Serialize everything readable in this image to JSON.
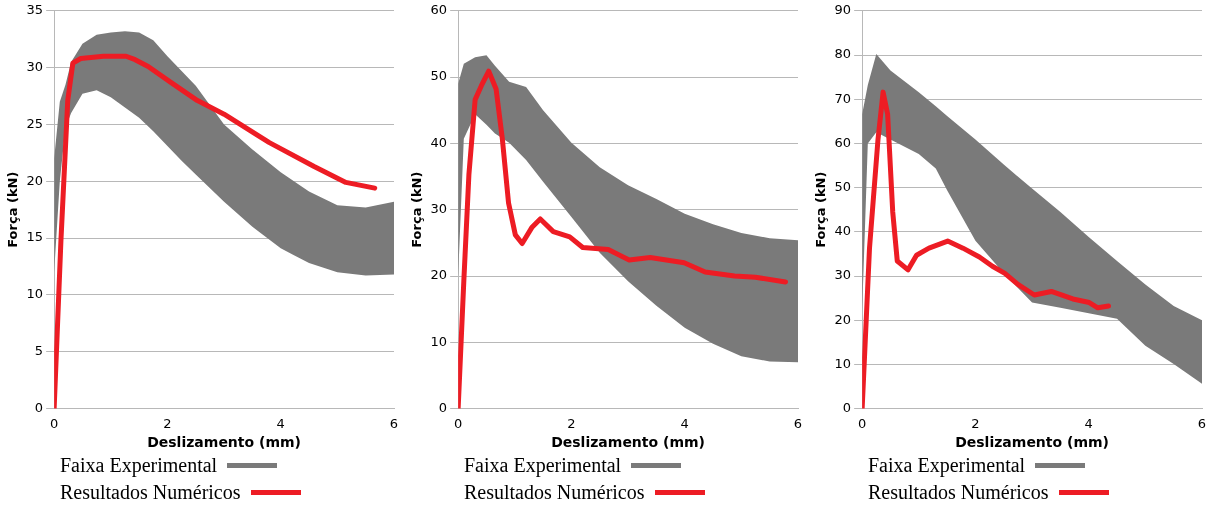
{
  "chart_data": [
    {
      "type": "line",
      "xlabel": "Deslizamento (mm)",
      "ylabel": "Força (kN)",
      "xlim": [
        0,
        6
      ],
      "xticks": [
        0,
        2,
        4,
        6
      ],
      "ylim": [
        0,
        35
      ],
      "yticks": [
        0,
        5,
        10,
        15,
        20,
        25,
        30,
        35
      ],
      "grid": "y",
      "legend": "bottom",
      "marker": "none",
      "line_style": "solid",
      "series": [
        {
          "name": "Faixa Experimental",
          "color": "#7a7a7a",
          "x": [
            0,
            0.1,
            0.2,
            0.3,
            0.5,
            0.75,
            1,
            1.25,
            1.5,
            1.75,
            2,
            2.25,
            2.5,
            3,
            3.5,
            4,
            4.5,
            5,
            5.5,
            6
          ],
          "values": [
            null,
            null,
            null,
            null,
            null,
            null,
            null,
            null,
            null,
            null,
            null,
            null,
            null,
            null,
            null,
            null,
            null,
            null,
            null,
            null
          ],
          "upper": [
            22,
            27,
            28.5,
            30.5,
            32.1,
            32.9,
            33.1,
            33.2,
            33.1,
            32.4,
            31,
            29.7,
            28.4,
            25,
            22.8,
            20.8,
            19.1,
            17.9,
            17.7,
            18.2
          ],
          "lower": [
            12,
            20,
            24.7,
            26,
            27.7,
            28,
            27.4,
            26.5,
            25.6,
            24.4,
            23.1,
            21.8,
            20.6,
            18.2,
            16,
            14.1,
            12.8,
            12,
            11.7,
            11.8
          ]
        },
        {
          "name": "Resultados Numéricos",
          "color": "#ed1c24",
          "x": [
            0,
            0.12,
            0.24,
            0.33,
            0.47,
            0.87,
            1.27,
            1.43,
            1.66,
            2.06,
            2.53,
            3,
            3.8,
            4.59,
            5.15,
            5.66
          ],
          "values": [
            0,
            14.8,
            27.1,
            30.4,
            30.8,
            31,
            31,
            30.7,
            30.1,
            28.7,
            27.1,
            25.9,
            23.4,
            21.3,
            19.9,
            19.4
          ]
        }
      ]
    },
    {
      "type": "line",
      "xlabel": "Deslizamento (mm)",
      "ylabel": "Força (kN)",
      "xlim": [
        0,
        6
      ],
      "xticks": [
        0,
        2,
        4,
        6
      ],
      "ylim": [
        0,
        60
      ],
      "yticks": [
        0,
        10,
        20,
        30,
        40,
        50,
        60
      ],
      "grid": "y",
      "legend": "bottom",
      "marker": "none",
      "line_style": "solid",
      "series": [
        {
          "name": "Faixa Experimental",
          "color": "#7a7a7a",
          "x": [
            0,
            0.1,
            0.3,
            0.5,
            0.65,
            0.9,
            1.2,
            1.5,
            2,
            2.5,
            3,
            3.5,
            4,
            4.5,
            5,
            5.5,
            6
          ],
          "values": [
            null,
            null,
            null,
            null,
            null,
            null,
            null,
            null,
            null,
            null,
            null,
            null,
            null,
            null,
            null,
            null,
            null
          ],
          "upper": [
            49,
            52,
            53,
            53.3,
            51.7,
            49.3,
            48.5,
            45,
            40.1,
            36.4,
            33.7,
            31.6,
            29.4,
            27.8,
            26.5,
            25.7,
            25.4
          ],
          "lower": [
            20,
            40.7,
            44.4,
            42.8,
            41.5,
            40.1,
            37.5,
            34.2,
            28.9,
            23.5,
            19.2,
            15.5,
            12.2,
            9.8,
            7.9,
            7.1,
            7
          ]
        },
        {
          "name": "Resultados Numéricos",
          "color": "#ed1c24",
          "x": [
            0,
            0.1,
            0.19,
            0.3,
            0.41,
            0.54,
            0.67,
            0.78,
            0.89,
            1.01,
            1.13,
            1.3,
            1.45,
            1.68,
            1.97,
            2.2,
            2.65,
            3.02,
            3.39,
            3.99,
            4.36,
            4.88,
            5.25,
            5.78
          ],
          "values": [
            0,
            19.2,
            35.3,
            46.6,
            48.7,
            50.9,
            48.2,
            40.7,
            31,
            26.2,
            24.9,
            27.3,
            28.6,
            26.7,
            25.9,
            24.3,
            24,
            22.4,
            22.8,
            22,
            20.6,
            20,
            19.8,
            19.1
          ]
        }
      ]
    },
    {
      "type": "line",
      "xlabel": "Deslizamento (mm)",
      "ylabel": "Força (kN)",
      "xlim": [
        0,
        6
      ],
      "xticks": [
        0,
        2,
        4,
        6
      ],
      "ylim": [
        0,
        90
      ],
      "yticks": [
        0,
        10,
        20,
        30,
        40,
        50,
        60,
        70,
        80,
        90
      ],
      "grid": "y",
      "legend": "bottom",
      "marker": "none",
      "line_style": "solid",
      "series": [
        {
          "name": "Faixa Experimental",
          "color": "#7a7a7a",
          "x": [
            0,
            0.1,
            0.25,
            0.5,
            1,
            1.3,
            1.5,
            2,
            2.5,
            3,
            3.5,
            4,
            4.5,
            5,
            5.5,
            6
          ],
          "values": [
            null,
            null,
            null,
            null,
            null,
            null,
            null,
            null,
            null,
            null,
            null,
            null,
            null,
            null,
            null,
            null
          ],
          "upper": [
            66.6,
            73.2,
            80.2,
            76.5,
            71.6,
            68.4,
            66.2,
            60.9,
            55.2,
            49.8,
            44.5,
            38.8,
            33.4,
            28.1,
            23.2,
            20
          ],
          "lower": [
            22,
            60,
            62.5,
            60.9,
            57.6,
            54.3,
            49.4,
            38,
            30.6,
            24,
            22.8,
            21.6,
            20.3,
            14.2,
            10.1,
            5.6
          ]
        },
        {
          "name": "Resultados Numéricos",
          "color": "#ed1c24",
          "x": [
            0,
            0.13,
            0.28,
            0.37,
            0.45,
            0.54,
            0.62,
            0.81,
            0.96,
            1.18,
            1.51,
            1.78,
            2.07,
            2.3,
            2.52,
            2.75,
            3.04,
            3.34,
            3.72,
            4.01,
            4.16,
            4.35
          ],
          "values": [
            0,
            36.3,
            60.9,
            71.6,
            66.6,
            44.5,
            33.4,
            31.4,
            34.7,
            36.3,
            37.9,
            36.3,
            34.3,
            32.2,
            30.6,
            28.1,
            25.7,
            26.5,
            24.8,
            24,
            22.8,
            23.2
          ]
        }
      ]
    }
  ]
}
